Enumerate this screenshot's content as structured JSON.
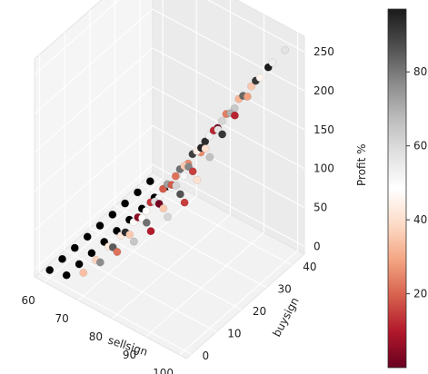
{
  "chart_data": {
    "type": "scatter",
    "projection": "3d",
    "title": "",
    "xlabel": "sellsign",
    "ylabel": "buysign",
    "zlabel": "Profit %",
    "xlim": [
      57,
      102
    ],
    "ylim": [
      -2,
      45
    ],
    "zlim": [
      -10,
      270
    ],
    "x_ticks": [
      "60",
      "70",
      "80",
      "90",
      "100"
    ],
    "y_ticks": [
      "0",
      "10",
      "20",
      "30",
      "40"
    ],
    "z_ticks": [
      "0",
      "50",
      "100",
      "150",
      "200",
      "250"
    ],
    "grid": true,
    "colormap": "RdGy",
    "colorbar": {
      "ticks": [
        "20",
        "40",
        "60",
        "80"
      ],
      "range": [
        0,
        97
      ],
      "colors": [
        "#67001f",
        "#b2182b",
        "#d6604d",
        "#f4a582",
        "#fddbc7",
        "#ffffff",
        "#e0e0e0",
        "#bababa",
        "#878787",
        "#4d4d4d",
        "#1a1a1a"
      ]
    },
    "x": [
      60,
      65,
      70,
      75,
      80,
      85,
      90,
      95,
      100
    ],
    "y": [
      0,
      5,
      10,
      15,
      20,
      25,
      30,
      35,
      40
    ],
    "z_values": [
      [
        0,
        5,
        20,
        45,
        70,
        95,
        120,
        150,
        180
      ],
      [
        0,
        5,
        22,
        50,
        78,
        105,
        135,
        165,
        195
      ],
      [
        0,
        5,
        25,
        55,
        85,
        115,
        150,
        180,
        210
      ],
      [
        0,
        5,
        25,
        60,
        92,
        125,
        160,
        195,
        225
      ],
      [
        0,
        5,
        28,
        65,
        100,
        135,
        170,
        205,
        235
      ],
      [
        0,
        5,
        28,
        68,
        105,
        140,
        178,
        212,
        245
      ],
      [
        0,
        5,
        30,
        70,
        110,
        145,
        185,
        220,
        255
      ],
      [
        0,
        5,
        30,
        72,
        112,
        150,
        190,
        225,
        260
      ],
      [
        0,
        5,
        30,
        72,
        115,
        152,
        192,
        228,
        262
      ]
    ]
  }
}
